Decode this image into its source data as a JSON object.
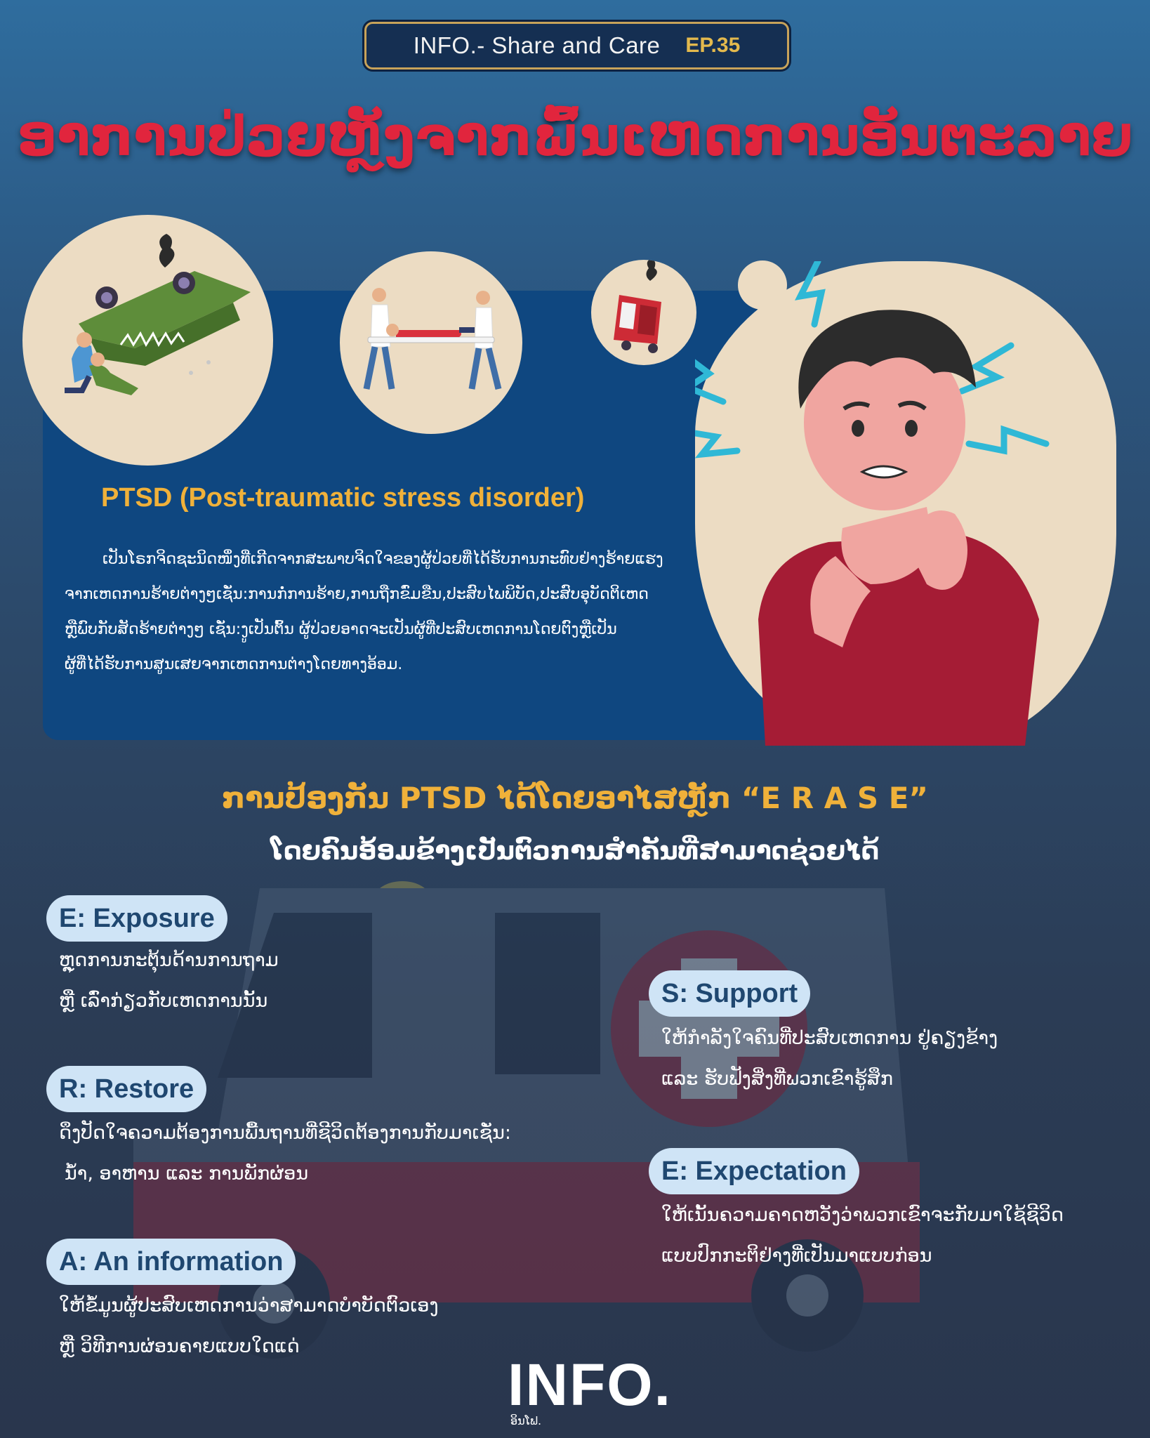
{
  "header": {
    "series": "INFO.- Share and Care",
    "episode": "EP.35"
  },
  "title": "ອາການປ່ວຍຫຼັງຈາກພົ້ນເຫດການອັນຕະລາຍ",
  "ptsd": {
    "heading": "PTSD (Post-traumatic stress disorder)",
    "lines": [
      "ເປັນໂຣກຈິດຊະນິດໜຶ່ງທີ່ເກີດຈາກສະພາບຈິດໃຈຂອງຜູ້ປ່ວຍທີ່ໄດ້ຮັບການກະທົບຢ່າງຮ້າຍແຮງ",
      "ຈາກເຫດການຮ້າຍຕ່າງໆເຊັ່ນ:ການກໍ່ການຮ້າຍ,ການຖືກຂົ່ມຂືນ,ປະສົບໄພພິບັດ,ປະສົບອຸບັດຕິເຫດ",
      "ຫຼືພົບກັບສັດຮ້າຍຕ່າງໆ ເຊັ່ນ:ງູເປັນຕົ້ນ ຜູ້ປ່ວຍອາດຈະເປັນຜູ້ທີ່ປະສົບເຫດການໂດຍຕົງຫຼືເປັນ",
      "ຜູ້ທີ່ໄດ້ຮັບການສູນເສຍຈາກເຫດການຕ່າງໂດຍທາງອ້ອມ."
    ]
  },
  "erase": {
    "title": "ການປ້ອງກັນ PTSD ໄດ້ໂດຍອາໄສຫຼັກ “E R A S E”",
    "subtitle": "ໂດຍຄົນອ້ອມຂ້າງເປັນຕົວການສຳຄັນທີ່ສາມາດຊ່ວຍໄດ້",
    "items": [
      {
        "label": "E: Exposure",
        "lines": [
          "ຫຼຸດການກະຕຸ້ນດ້ານການຖາມ",
          "ຫຼື ເລົ່າກ່ຽວກັບເຫດການນັ້ນ"
        ]
      },
      {
        "label": "R: Restore",
        "lines": [
          "ດຶງປັດໃຈຄວາມຕ້ອງການພື້ນຖານທີ່ຊີວິດຕ້ອງການກັບມາເຊັ່ນ:",
          "ນ້ຳ, ອາຫານ ແລະ ການພັກຜ່ອນ"
        ]
      },
      {
        "label": "A: An information",
        "lines": [
          "ໃຫ້ຂໍ້ມູນຜູ້ປະສົບເຫດການວ່າສາມາດບຳບັດຕົວເອງ",
          "ຫຼື ວິທີການຜ່ອນຄາຍແບບໃດແດ່"
        ]
      },
      {
        "label": "S: Support",
        "lines": [
          "ໃຫ້ກຳລັງໃຈຄົນທີ່ປະສົບເຫດການ ຢູ່ຄຽງຂ້າງ",
          "ແລະ ຮັບຟັງສິ່ງທີ່ພວກເຂົາຮູ້ສຶກ"
        ]
      },
      {
        "label": "E: Expectation",
        "lines": [
          "ໃຫ້ເນັ້ນຄວາມຄາດຫວັງວ່າພວກເຂົາຈະກັບມາໃຊ້ຊີວິດ",
          "ແບບປົກກະຕິຢ່າງທີ່ເປັນມາແບບກ່ອນ"
        ]
      }
    ]
  },
  "logo": {
    "main": "INFO.",
    "sub": "ອິນໂຟ."
  },
  "colors": {
    "accent_red": "#e1253d",
    "accent_gold": "#f0b13a",
    "panel_blue": "#0f4780",
    "pill_bg": "#cfe4f6"
  },
  "icons": [
    "overturned-car-rescue-illustration",
    "stretcher-carry-illustration",
    "crashed-car-illustration",
    "anxious-man-illustration",
    "ambulance-illustration"
  ]
}
